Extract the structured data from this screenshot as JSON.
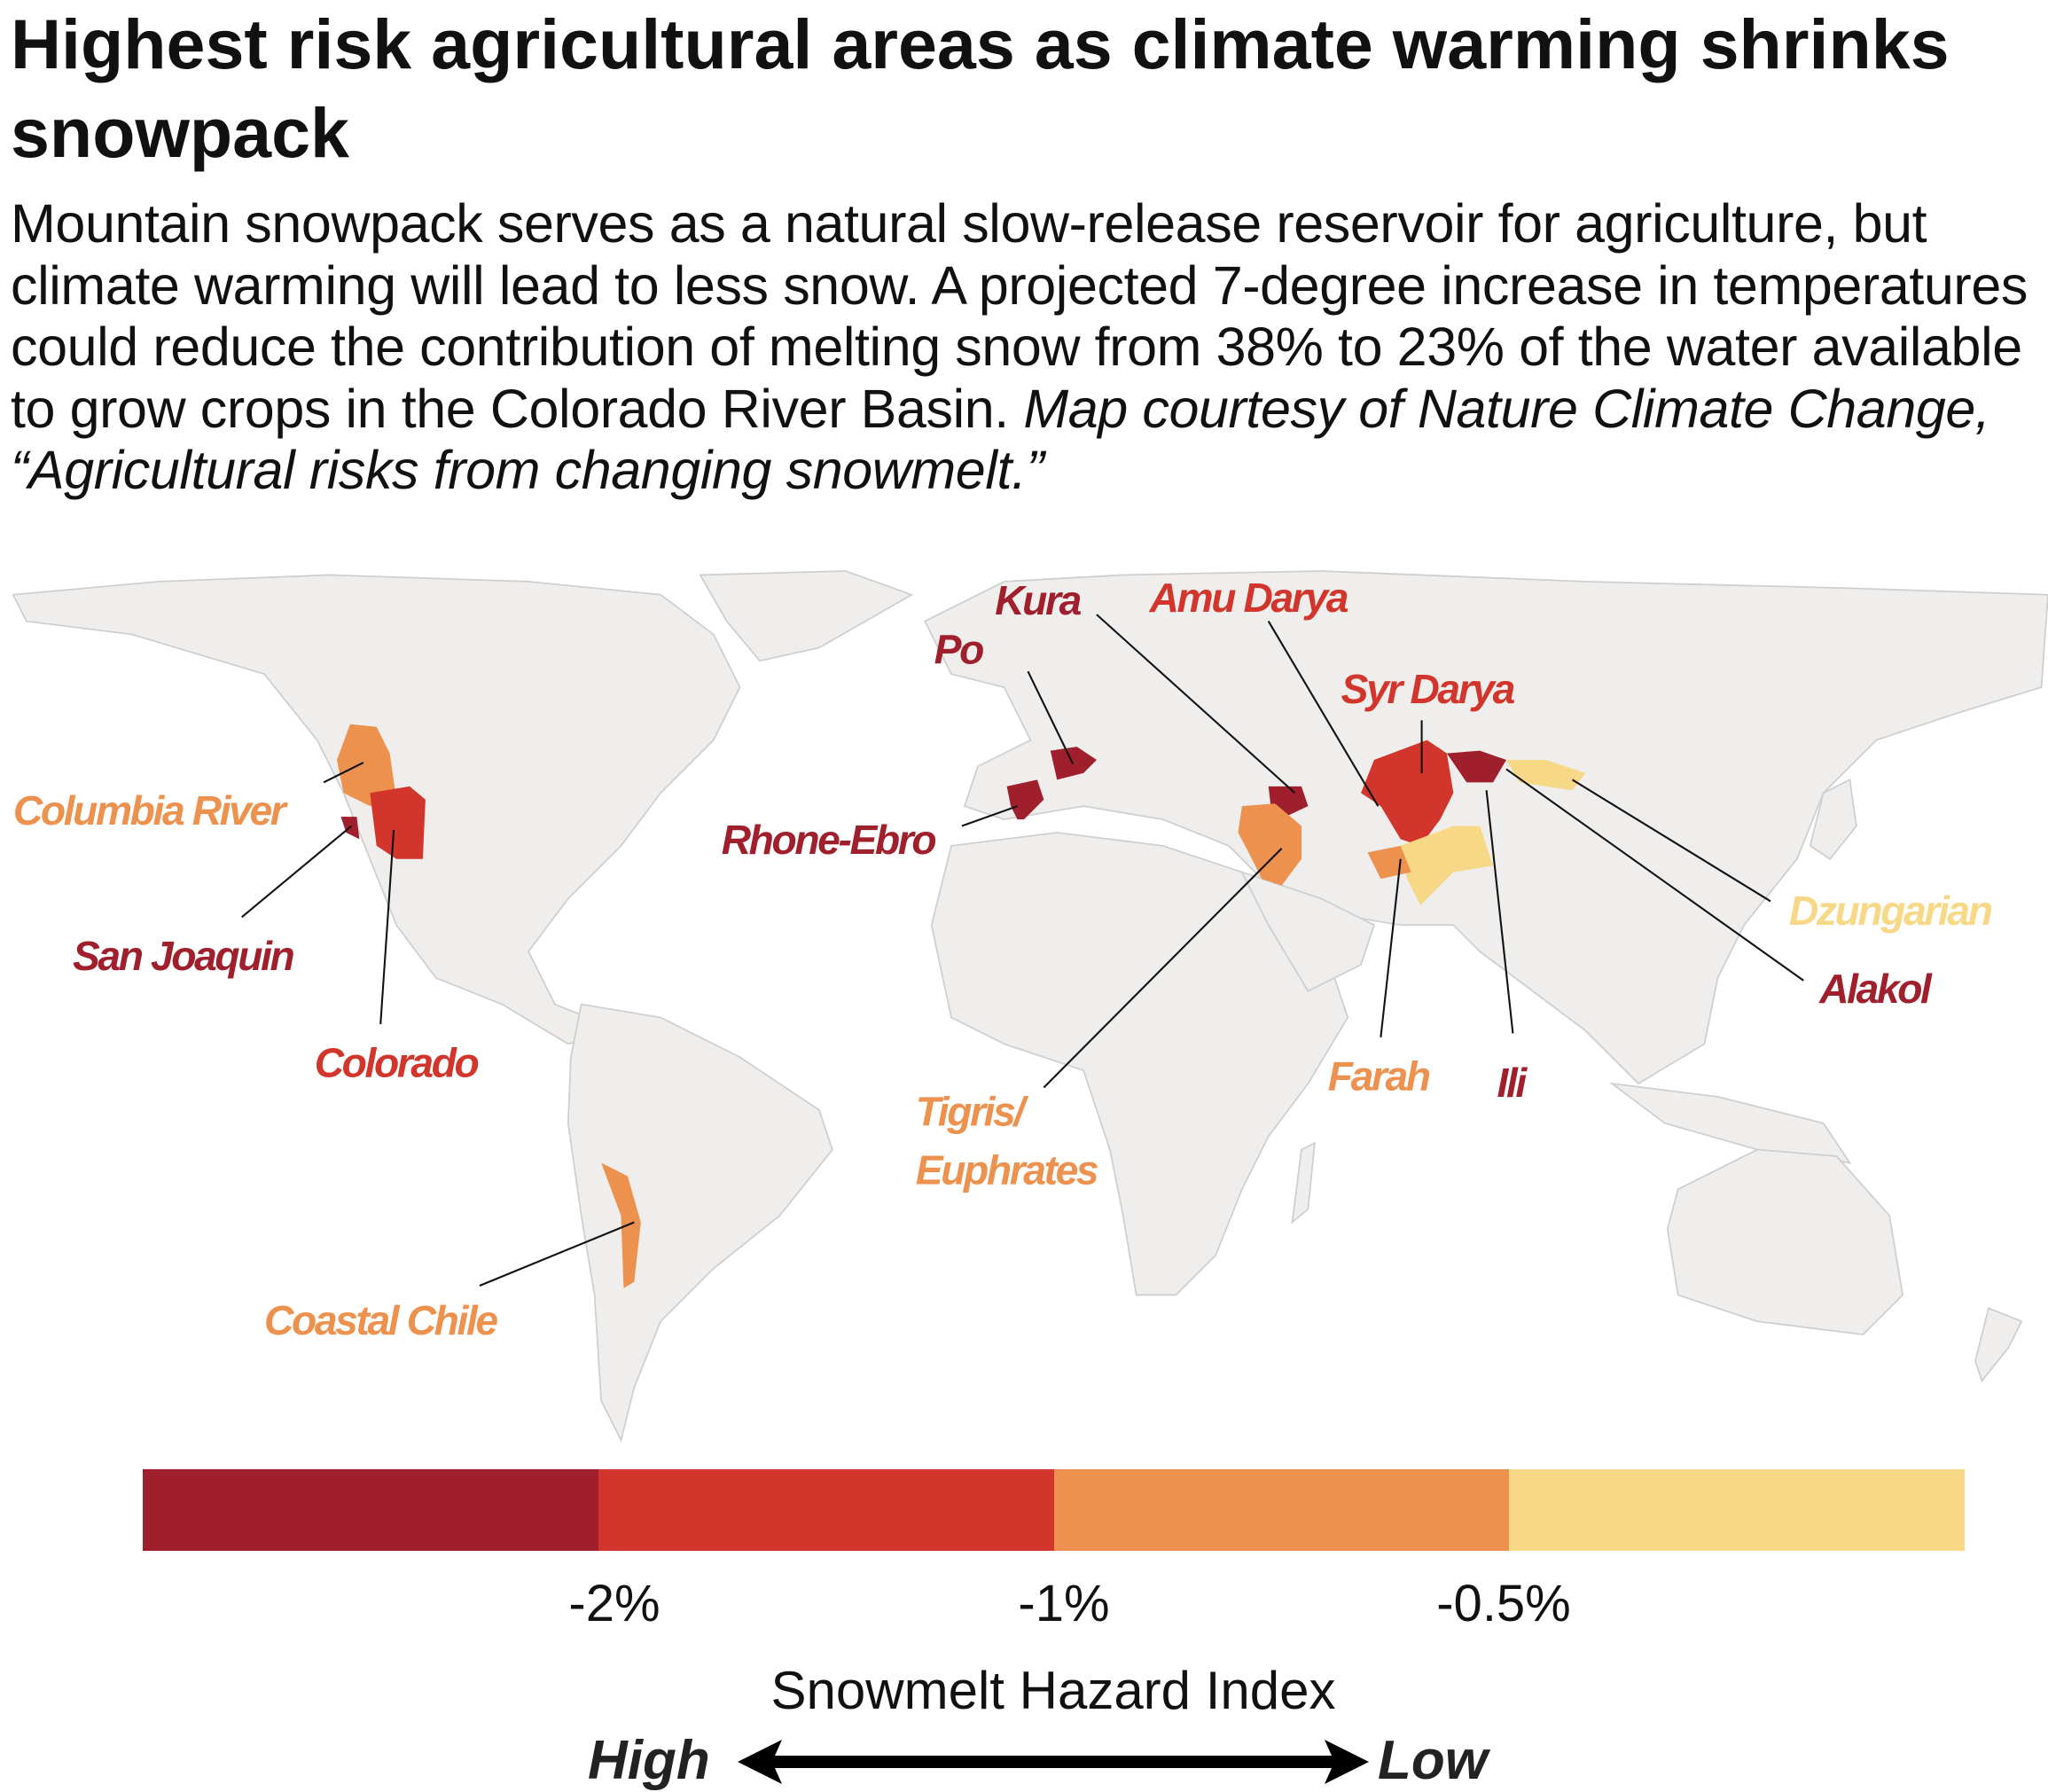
{
  "header": {
    "title": "Highest risk agricultural areas as climate warming shrinks snowpack",
    "description": "Mountain snowpack serves as a natural slow-release reservoir for agriculture, but climate warming will lead to less snow. A projected 7-degree increase in temperatures could reduce the contribution of melting snow from 38% to 23% of the water available to grow crops in the Colorado River Basin.",
    "credit": "Map courtesy of Nature Climate Change, “Agricultural risks from changing snowmelt.”"
  },
  "colors": {
    "very_high": "#a01f2c",
    "high": "#d1352b",
    "medium": "#ed914f",
    "low": "#f7d886"
  },
  "map": {
    "basins": [
      {
        "name": "Columbia River",
        "level": "medium"
      },
      {
        "name": "San Joaquin",
        "level": "very_high"
      },
      {
        "name": "Colorado",
        "level": "high"
      },
      {
        "name": "Coastal Chile",
        "level": "medium"
      },
      {
        "name": "Rhone-Ebro",
        "level": "very_high"
      },
      {
        "name": "Po",
        "level": "very_high"
      },
      {
        "name": "Kura",
        "level": "very_high"
      },
      {
        "name": "Amu Darya",
        "level": "high"
      },
      {
        "name": "Syr Darya",
        "level": "high"
      },
      {
        "name": "Tigris/",
        "level": "medium"
      },
      {
        "name": "Euphrates",
        "level": "medium"
      },
      {
        "name": "Farah",
        "level": "medium"
      },
      {
        "name": "Ili",
        "level": "very_high"
      },
      {
        "name": "Alakol",
        "level": "very_high"
      },
      {
        "name": "Dzungarian",
        "level": "low"
      }
    ]
  },
  "legend": {
    "ticks": [
      "-2%",
      "-1%",
      "-0.5%"
    ],
    "title": "Snowmelt Hazard Index",
    "high_label": "High",
    "low_label": "Low"
  }
}
